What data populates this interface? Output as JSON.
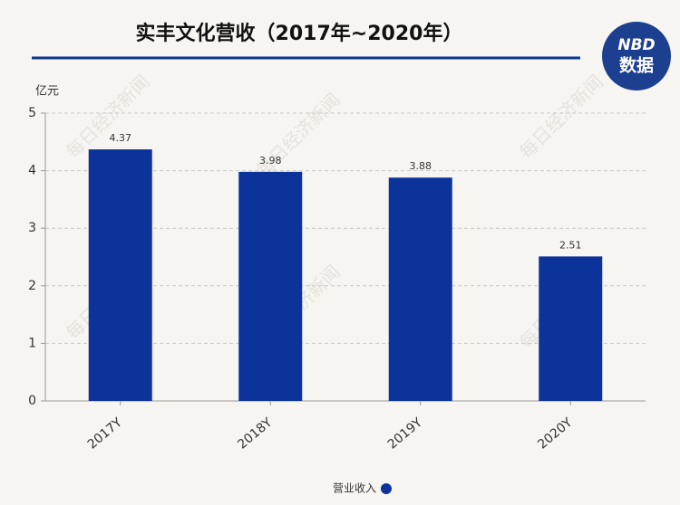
{
  "chart_data": {
    "type": "bar",
    "title": "实丰文化营收（2017年~2020年）",
    "y_unit": "亿元",
    "categories": [
      "2017Y",
      "2018Y",
      "2019Y",
      "2020Y"
    ],
    "series": [
      {
        "name": "营业收入",
        "color": "#0c3399",
        "values": [
          4.37,
          3.98,
          3.88,
          2.51
        ]
      }
    ],
    "ylim": [
      0,
      5
    ],
    "yticks": [
      0,
      1,
      2,
      3,
      4,
      5
    ],
    "grid": true,
    "legend": "bottom",
    "watermark": "每日经济新闻",
    "logo": {
      "top": "NBD",
      "bottom": "数据"
    }
  }
}
